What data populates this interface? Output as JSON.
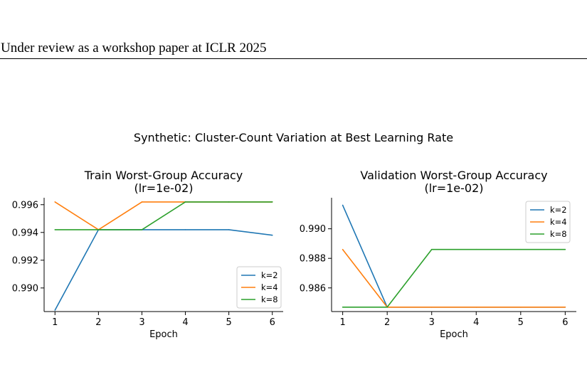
{
  "header": {
    "text": "Under review as a workshop paper at ICLR 2025"
  },
  "figure": {
    "suptitle": "Synthetic: Cluster-Count Variation at Best Learning Rate"
  },
  "colors": {
    "k=2": "#1f77b4",
    "k=4": "#ff7f0e",
    "k=8": "#2ca02c"
  },
  "chart_data": [
    {
      "type": "line",
      "title": "Train Worst-Group Accuracy",
      "subtitle": "(lr=1e-02)",
      "xlabel": "Epoch",
      "ylabel": "",
      "x": [
        1,
        2,
        3,
        4,
        5,
        6
      ],
      "xticks": [
        1,
        2,
        3,
        4,
        5,
        6
      ],
      "yticks": [
        0.99,
        0.992,
        0.994,
        0.996
      ],
      "ytick_labels": [
        "0.990",
        "0.992",
        "0.994",
        "0.996"
      ],
      "ylim": [
        0.9883,
        0.9965
      ],
      "legend_position": "lower-right",
      "grid": false,
      "series": [
        {
          "name": "k=2",
          "values": [
            0.9884,
            0.9942,
            0.9942,
            0.9942,
            0.9942,
            0.9938
          ]
        },
        {
          "name": "k=4",
          "values": [
            0.9962,
            0.9942,
            0.9962,
            0.9962,
            0.9962,
            0.9962
          ]
        },
        {
          "name": "k=8",
          "values": [
            0.9942,
            0.9942,
            0.9942,
            0.9962,
            0.9962,
            0.9962
          ]
        }
      ]
    },
    {
      "type": "line",
      "title": "Validation Worst-Group Accuracy",
      "subtitle": "(lr=1e-02)",
      "xlabel": "Epoch",
      "ylabel": "",
      "x": [
        1,
        2,
        3,
        4,
        5,
        6
      ],
      "xticks": [
        1,
        2,
        3,
        4,
        5,
        6
      ],
      "yticks": [
        0.986,
        0.988,
        0.99
      ],
      "ytick_labels": [
        "0.986",
        "0.988",
        "0.990"
      ],
      "ylim": [
        0.9844,
        0.9921
      ],
      "legend_position": "upper-right",
      "grid": false,
      "series": [
        {
          "name": "k=2",
          "values": [
            0.9916,
            0.9847,
            0.9847,
            0.9847,
            0.9847,
            0.9847
          ]
        },
        {
          "name": "k=4",
          "values": [
            0.9886,
            0.9847,
            0.9847,
            0.9847,
            0.9847,
            0.9847
          ]
        },
        {
          "name": "k=8",
          "values": [
            0.9847,
            0.9847,
            0.9886,
            0.9886,
            0.9886,
            0.9886
          ]
        }
      ]
    }
  ]
}
